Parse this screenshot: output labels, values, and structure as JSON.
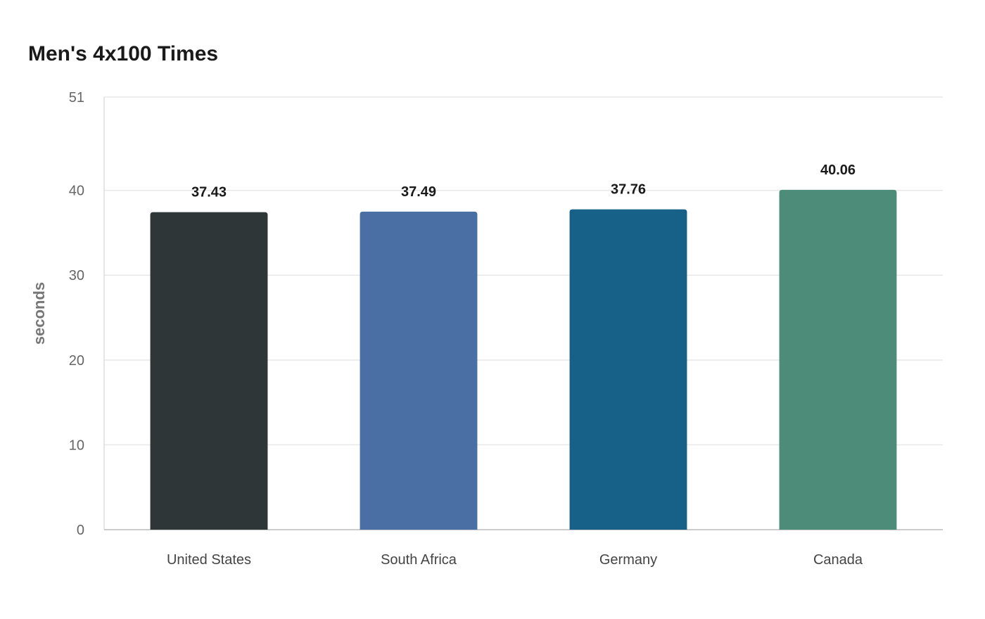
{
  "chart_data": {
    "type": "bar",
    "title": "Men's 4x100 Times",
    "xlabel": "",
    "ylabel": "seconds",
    "categories": [
      "United States",
      "South Africa",
      "Germany",
      "Canada"
    ],
    "values": [
      37.43,
      37.49,
      37.76,
      40.06
    ],
    "value_labels": [
      "37.43",
      "37.49",
      "37.76",
      "40.06"
    ],
    "colors": [
      "#2e3638",
      "#4a6fa5",
      "#176087",
      "#4e8c7a"
    ],
    "ylim": [
      0,
      51
    ],
    "yticks": [
      0,
      10,
      20,
      30,
      40,
      51
    ],
    "grid": true,
    "legend": "none"
  }
}
